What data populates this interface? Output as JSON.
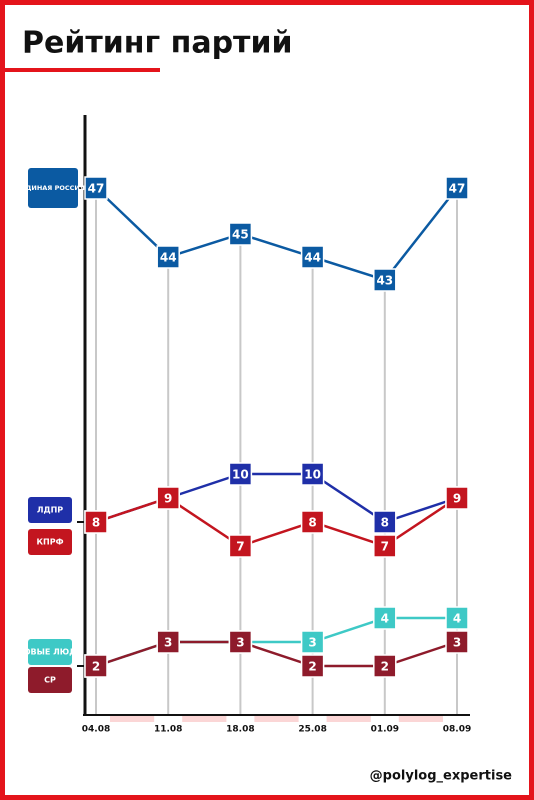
{
  "chart_data": {
    "type": "line",
    "title": "Рейтинг партий",
    "footer": "@polylog_expertise",
    "categories": [
      "04.08",
      "11.08",
      "18.08",
      "25.08",
      "01.09",
      "08.09"
    ],
    "series": [
      {
        "name": "ЕДИНАЯ РОССИЯ",
        "color": "#0b5aa2",
        "values": [
          47,
          44,
          45,
          44,
          43,
          47
        ]
      },
      {
        "name": "ЛДПР",
        "color": "#1f2fa8",
        "values": [
          8,
          9,
          10,
          10,
          8,
          9
        ]
      },
      {
        "name": "КПРФ",
        "color": "#c3151f",
        "values": [
          8,
          9,
          7,
          8,
          7,
          9
        ]
      },
      {
        "name": "НОВЫЕ ЛЮДИ",
        "color": "#3ec9c6",
        "values": [
          2,
          3,
          3,
          3,
          4,
          4
        ]
      },
      {
        "name": "СР",
        "color": "#8e1b2b",
        "values": [
          2,
          3,
          3,
          2,
          2,
          3
        ]
      }
    ],
    "ylim": [
      1,
      48
    ],
    "axis_break": [
      11,
      42
    ],
    "legend": "left"
  }
}
